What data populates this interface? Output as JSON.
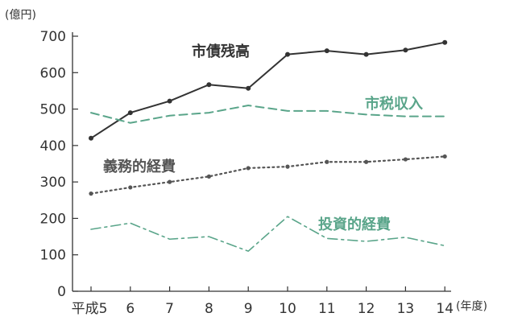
{
  "chart_data": {
    "type": "line",
    "title": "",
    "ylabel": "(億円)",
    "xlabel": "(年度)",
    "ylim": [
      0,
      700
    ],
    "yticks": [
      0,
      100,
      200,
      300,
      400,
      500,
      600,
      700
    ],
    "grid": false,
    "x": [
      "平成5",
      "6",
      "7",
      "8",
      "9",
      "10",
      "11",
      "12",
      "13",
      "14"
    ],
    "series": [
      {
        "name": "市債残高",
        "color": "#333333",
        "style": "solid",
        "values": [
          420,
          490,
          522,
          567,
          557,
          650,
          660,
          650,
          662,
          683
        ]
      },
      {
        "name": "市税収入",
        "color": "#5aa58a",
        "style": "dashed",
        "values": [
          490,
          462,
          482,
          490,
          510,
          495,
          495,
          485,
          480,
          480
        ]
      },
      {
        "name": "義務的経費",
        "color": "#555555",
        "style": "dotted",
        "values": [
          268,
          285,
          300,
          315,
          338,
          342,
          355,
          355,
          362,
          370
        ]
      },
      {
        "name": "投資的経費",
        "color": "#5aa58a",
        "style": "dashdot",
        "values": [
          170,
          187,
          143,
          150,
          110,
          205,
          145,
          137,
          148,
          125
        ]
      }
    ]
  }
}
